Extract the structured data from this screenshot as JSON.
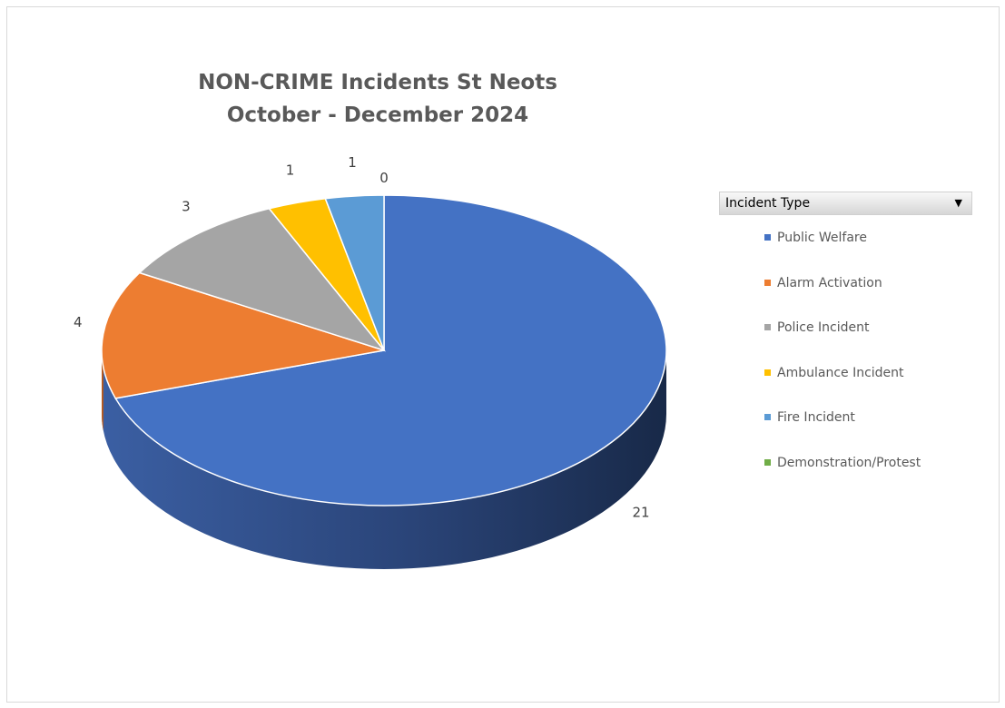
{
  "chart_data": {
    "type": "pie",
    "title": "NON-CRIME Incidents St Neots",
    "subtitle": "October - December 2024",
    "legend_header": "Incident Type",
    "legend_position": "right",
    "categories": [
      "Public Welfare",
      "Alarm Activation",
      "Police Incident",
      "Ambulance Incident",
      "Fire Incident",
      "Demonstration/Protest"
    ],
    "values": [
      21,
      4,
      3,
      1,
      1,
      0
    ],
    "colors": [
      "#4472c4",
      "#ed7d31",
      "#a5a5a5",
      "#ffc000",
      "#5b9bd5",
      "#70ad47"
    ]
  }
}
